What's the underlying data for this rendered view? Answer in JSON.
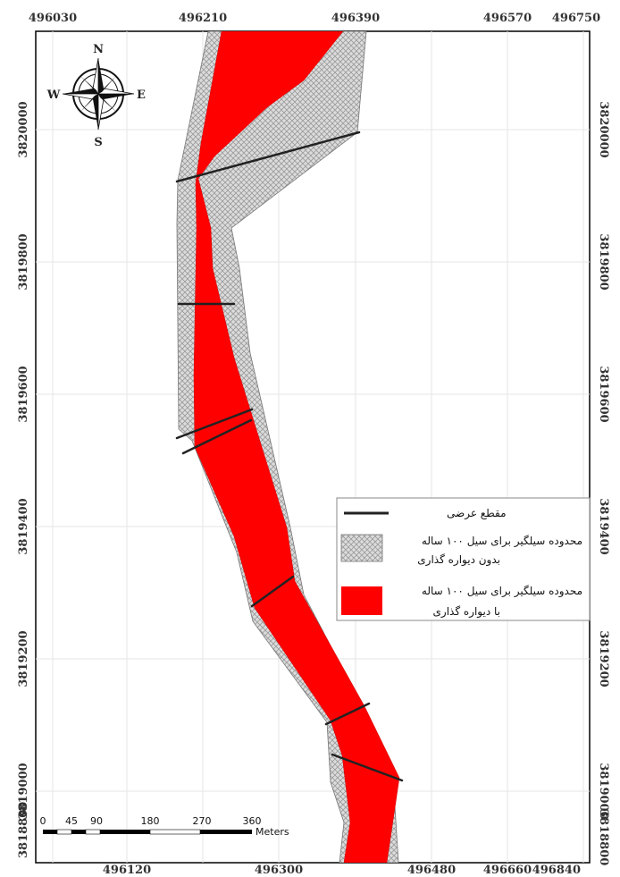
{
  "top_x_ticks": [
    "496030",
    "496210",
    "496390",
    "496570",
    "496750"
  ],
  "bottom_x_ticks": [
    "496120",
    "496300",
    "496480",
    "496660",
    "496840"
  ],
  "left_y_ticks": [
    "3820000",
    "3819800",
    "3819600",
    "3819400",
    "3819200",
    "3819000",
    "3818800"
  ],
  "right_y_ticks": [
    "3820000",
    "3819800",
    "3819600",
    "3819400",
    "3819200",
    "3819000",
    "3818800"
  ],
  "compass": {
    "n": "N",
    "s": "S",
    "e": "E",
    "w": "W"
  },
  "scale_bar": {
    "labels": [
      "0",
      "45",
      "90",
      "180",
      "270",
      "360"
    ],
    "unit": "Meters"
  },
  "legend": {
    "cross_section": "مقطع عرضی",
    "without_wall_line1": "محدوده سیلگیر برای سیل ۱۰۰ ساله",
    "without_wall_line2": "بدون دیواره گذاری",
    "with_wall_line1": "محدوده سیلگیر برای سیل ۱۰۰ ساله",
    "with_wall_line2": "با دیواره گذاری"
  },
  "colors": {
    "flood_with_wall": "#ff0000",
    "flood_without_wall": "#d9d9d9",
    "cross_section": "#222222",
    "grid": "#e6e6e6"
  }
}
